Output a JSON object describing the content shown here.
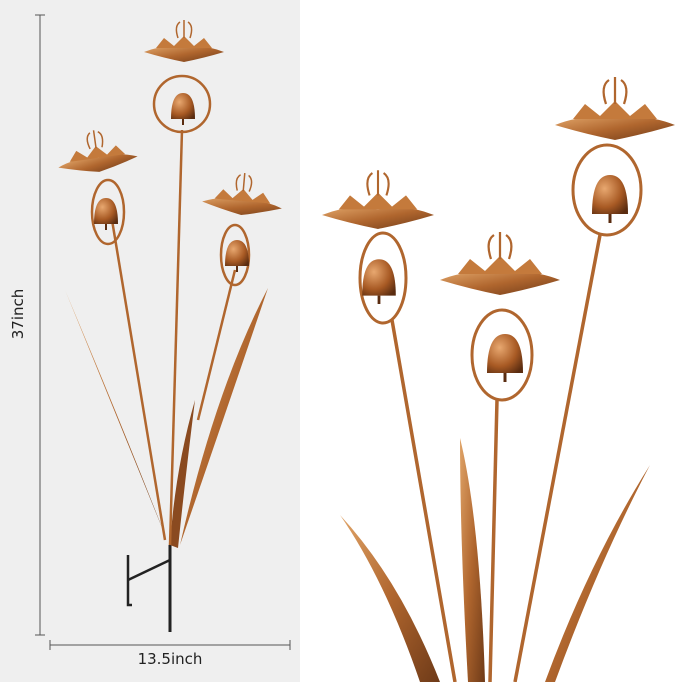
{
  "dimensions": {
    "height_label": "37inch",
    "width_label": "13.5inch"
  },
  "colors": {
    "copper": "#b0662e",
    "copper_dark": "#6e3a18",
    "copper_light": "#d99a5c",
    "panel_bg": "#efefef",
    "stake": "#222222"
  }
}
